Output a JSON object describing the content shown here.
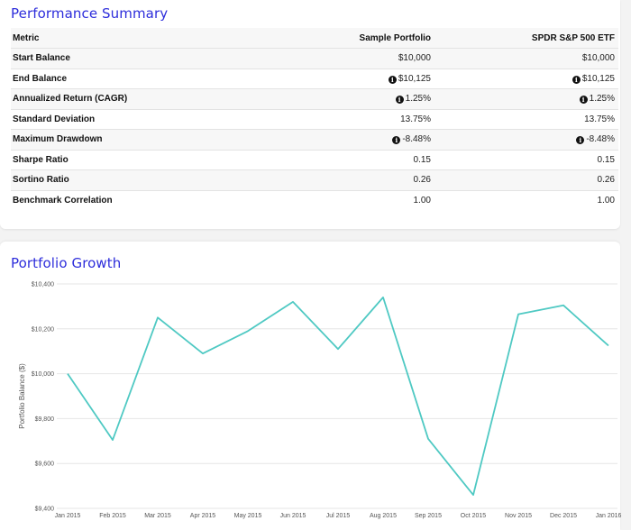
{
  "summary": {
    "title": "Performance Summary",
    "header": {
      "metric": "Metric",
      "col_a": "Sample Portfolio",
      "col_b": "SPDR S&P 500 ETF"
    },
    "rows": [
      {
        "metric": "Start Balance",
        "a": "$10,000",
        "b": "$10,000",
        "info_a": false,
        "info_b": false
      },
      {
        "metric": "End Balance",
        "a": "$10,125",
        "b": "$10,125",
        "info_a": true,
        "info_b": true
      },
      {
        "metric": "Annualized Return (CAGR)",
        "a": "1.25%",
        "b": "1.25%",
        "info_a": true,
        "info_b": true
      },
      {
        "metric": "Standard Deviation",
        "a": "13.75%",
        "b": "13.75%",
        "info_a": false,
        "info_b": false
      },
      {
        "metric": "Maximum Drawdown",
        "a": "-8.48%",
        "b": "-8.48%",
        "info_a": true,
        "info_b": true
      },
      {
        "metric": "Sharpe Ratio",
        "a": "0.15",
        "b": "0.15",
        "info_a": false,
        "info_b": false
      },
      {
        "metric": "Sortino Ratio",
        "a": "0.26",
        "b": "0.26",
        "info_a": false,
        "info_b": false
      },
      {
        "metric": "Benchmark Correlation",
        "a": "1.00",
        "b": "1.00",
        "info_a": false,
        "info_b": false
      }
    ],
    "info_icon": "info-circle-icon",
    "info_glyph": "i"
  },
  "growth": {
    "title": "Portfolio Growth"
  },
  "chart_data": {
    "type": "line",
    "ylabel": "Portfolio Balance ($)",
    "xlabel": "",
    "x": [
      "Jan 2015",
      "Feb 2015",
      "Mar 2015",
      "Apr 2015",
      "May 2015",
      "Jun 2015",
      "Jul 2015",
      "Aug 2015",
      "Sep 2015",
      "Oct 2015",
      "Nov 2015",
      "Dec 2015",
      "Jan 2016"
    ],
    "series": [
      {
        "values": [
          10000,
          9705,
          10250,
          10090,
          10190,
          10320,
          10110,
          10340,
          9710,
          9460,
          10265,
          10305,
          10125
        ],
        "color": "#4fc9c3"
      }
    ],
    "yticks": [
      9400,
      9600,
      9800,
      10000,
      10200,
      10400
    ],
    "ytick_labels": [
      "$9,400",
      "$9,600",
      "$9,800",
      "$10,000",
      "$10,200",
      "$10,400"
    ],
    "ylim": [
      9400,
      10400
    ],
    "grid": true,
    "colors": {
      "line": "#4fc9c3",
      "grid": "#e6e6e6",
      "title": "#2d2ddb"
    }
  }
}
